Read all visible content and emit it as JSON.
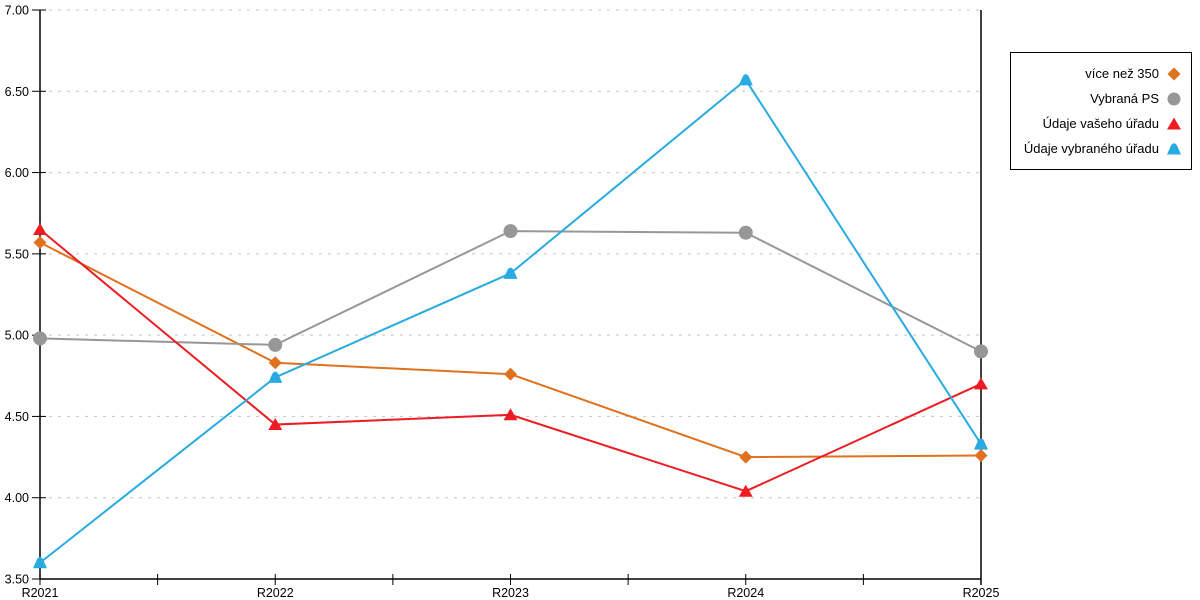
{
  "chart_data": {
    "type": "line",
    "title": "",
    "xlabel": "",
    "ylabel": "",
    "categories": [
      "R2021",
      "R2022",
      "R2023",
      "R2024",
      "R2025"
    ],
    "series": [
      {
        "name": "více než 350",
        "marker": "diamond",
        "color": "#E0711E",
        "values": [
          5.57,
          4.83,
          4.76,
          4.25,
          4.26
        ]
      },
      {
        "name": "Vybraná PS",
        "marker": "circle",
        "color": "#979797",
        "values": [
          4.98,
          4.94,
          5.64,
          5.63,
          4.9
        ]
      },
      {
        "name": "Údaje vašeho úřadu",
        "marker": "triangle",
        "color": "#ED1C24",
        "values": [
          5.65,
          4.45,
          4.51,
          4.04,
          4.7
        ]
      },
      {
        "name": "Údaje vybraného úřadu",
        "marker": "triangle-round",
        "color": "#29ABE2",
        "values": [
          3.6,
          4.74,
          5.38,
          6.57,
          4.33
        ]
      }
    ],
    "ylim": [
      3.5,
      7.0
    ],
    "y_tick_step": 0.5,
    "y_ticks": [
      {
        "value": 3.5,
        "label": "3.50"
      },
      {
        "value": 4.0,
        "label": "4.00"
      },
      {
        "value": 4.5,
        "label": "4.50"
      },
      {
        "value": 5.0,
        "label": "5.00"
      },
      {
        "value": 5.5,
        "label": "5.50"
      },
      {
        "value": 6.0,
        "label": "6.00"
      },
      {
        "value": 6.5,
        "label": "6.50"
      },
      {
        "value": 7.0,
        "label": "7.00"
      }
    ],
    "grid": "horizontal-dashed",
    "legend_position": "top-right",
    "colors": {
      "background": "#FFFFFF",
      "axis": "#000000",
      "grid": "#C4C4C4",
      "text": "#000000"
    }
  }
}
